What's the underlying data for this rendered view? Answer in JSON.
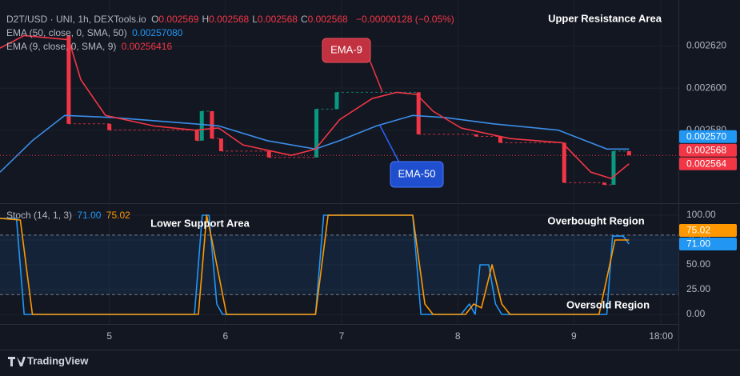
{
  "header": {
    "symbol": "D2T/USD · UNI, 1h, DEXTools.io",
    "ohlc": [
      {
        "key": "O",
        "value": "0.002569"
      },
      {
        "key": "H",
        "value": "0.002568"
      },
      {
        "key": "L",
        "value": "0.002568"
      },
      {
        "key": "C",
        "value": "0.002568"
      }
    ],
    "change": "−0.00000128 (−0.05%)"
  },
  "chart_data": [
    {
      "type": "candlestick",
      "annotations": [
        "Upper Resistance Area"
      ],
      "xlim": [
        -22.6,
        117.6
      ],
      "xticks": [
        {
          "value": 0,
          "label": "5"
        },
        {
          "value": 24,
          "label": "6"
        },
        {
          "value": 48,
          "label": "7"
        },
        {
          "value": 72,
          "label": "8"
        },
        {
          "value": 96,
          "label": "9"
        },
        {
          "value": 114,
          "label": "18:00"
        }
      ],
      "ylim": [
        0.002546,
        0.00264
      ],
      "yticks": [
        {
          "value": 0.00262,
          "label": "0.002620"
        },
        {
          "value": 0.0026,
          "label": "0.002600"
        },
        {
          "value": 0.00258,
          "label": "0.002580"
        }
      ],
      "up_color": "#089981",
      "down_color": "#f23645",
      "candles": {
        "x": [
          -8.4,
          0,
          18.1,
          19.1,
          21.2,
          23.1,
          33,
          42.8,
          47,
          63.9,
          75.8,
          80.8,
          94,
          102.3,
          104.2,
          107.4
        ],
        "open": [
          0.002625,
          0.002583,
          0.00258,
          0.002575,
          0.002589,
          0.002576,
          0.00257,
          0.002567,
          0.00259,
          0.002598,
          0.002578,
          0.002577,
          0.002574,
          0.002555,
          0.002554,
          0.00257
        ],
        "close": [
          0.002583,
          0.00258,
          0.002575,
          0.002589,
          0.002576,
          0.00257,
          0.002567,
          0.00259,
          0.002598,
          0.002578,
          0.002577,
          0.002574,
          0.002555,
          0.002554,
          0.00257,
          0.002568
        ]
      },
      "series": [
        {
          "name": "EMA-50",
          "label": "EMA (50, close, 0, SMA, 50)",
          "last": "0.00257080",
          "color": "#3b8de8",
          "x": [
            -22.6,
            -15.9,
            -9.2,
            0.8,
            17.6,
            22.6,
            32.6,
            42.6,
            47.6,
            55.2,
            62.7,
            69.4,
            79.4,
            92.8,
            102.8,
            107.4
          ],
          "values": [
            0.00256,
            0.002575,
            0.002587,
            0.002586,
            0.002583,
            0.002582,
            0.002575,
            0.002571,
            0.002575,
            0.002582,
            0.002587,
            0.002586,
            0.002583,
            0.00258,
            0.002571,
            0.002571
          ]
        },
        {
          "name": "EMA-9",
          "label": "EMA (9, close, 0, SMA, 9)",
          "last": "0.00256416",
          "color": "#f23645",
          "x": [
            -22.6,
            -17.6,
            -8.4,
            -5.9,
            -0.8,
            9.2,
            17.6,
            22.6,
            27.6,
            37.6,
            42.6,
            47.6,
            54.3,
            59.4,
            63.5,
            66.9,
            72.7,
            82.8,
            93.6,
            99.5,
            103.7,
            107.4
          ],
          "values": [
            0.002619,
            0.002625,
            0.002623,
            0.002604,
            0.002587,
            0.002582,
            0.00258,
            0.002581,
            0.002573,
            0.002568,
            0.002571,
            0.002585,
            0.002595,
            0.002598,
            0.002597,
            0.002589,
            0.002581,
            0.002576,
            0.002574,
            0.00256,
            0.002557,
            0.002564
          ]
        }
      ],
      "price_tags": [
        {
          "value": 0.00257,
          "label": "0.002570",
          "color": "#2196f3"
        },
        {
          "value": 0.002568,
          "label": "0.002568",
          "color": "#f23645"
        },
        {
          "value": 0.002564,
          "label": "0.002564",
          "color": "#f23645"
        }
      ]
    },
    {
      "type": "line",
      "title": "Stoch (14, 1, 3)",
      "annotations": [
        "Lower Support Area",
        "Overbought Region",
        "Oversold Region"
      ],
      "xlim": [
        -22.6,
        117.6
      ],
      "ylim": [
        -9.7,
        108.9
      ],
      "yticks": [
        {
          "value": 100,
          "label": "100.00"
        },
        {
          "value": 75,
          "label": "75.00"
        },
        {
          "value": 50,
          "label": "50.00"
        },
        {
          "value": 25,
          "label": "25.00"
        },
        {
          "value": 0,
          "label": "0.00"
        }
      ],
      "bands": [
        80,
        20
      ],
      "series": [
        {
          "last": "71.00",
          "last_value": 71,
          "color": "#2196f3",
          "x": [
            -22.6,
            -19.2,
            -17.6,
            17.6,
            19.2,
            20.6,
            22.2,
            23.4,
            42.6,
            44.3,
            62.7,
            64.4,
            72.7,
            74.4,
            75.6,
            76.6,
            78.4,
            79.8,
            81.1,
            102.8,
            104,
            106.2,
            107.4
          ],
          "values": [
            96.8,
            96.8,
            0,
            0,
            100,
            100,
            10.5,
            0,
            0,
            100,
            100,
            0,
            0,
            10.5,
            0,
            50,
            50,
            10.5,
            0,
            0,
            79,
            79,
            71
          ]
        },
        {
          "last": "75.02",
          "last_value": 75.02,
          "color": "#ff9800",
          "x": [
            -22.6,
            -18.4,
            -15.9,
            18.4,
            20.1,
            21.2,
            24.2,
            42.6,
            45.2,
            62.7,
            65.2,
            66.9,
            73.6,
            75.3,
            76.9,
            79.1,
            81.1,
            82.8,
            101.2,
            104.5,
            107.4
          ],
          "values": [
            96.8,
            95.2,
            0,
            0,
            100,
            75,
            0,
            0,
            100,
            100,
            10.5,
            0,
            0,
            10.5,
            6.5,
            50,
            10.5,
            0,
            0,
            75,
            75
          ]
        }
      ]
    }
  ],
  "callouts": [
    "EMA-9",
    "EMA-50"
  ],
  "branding": "TradingView"
}
